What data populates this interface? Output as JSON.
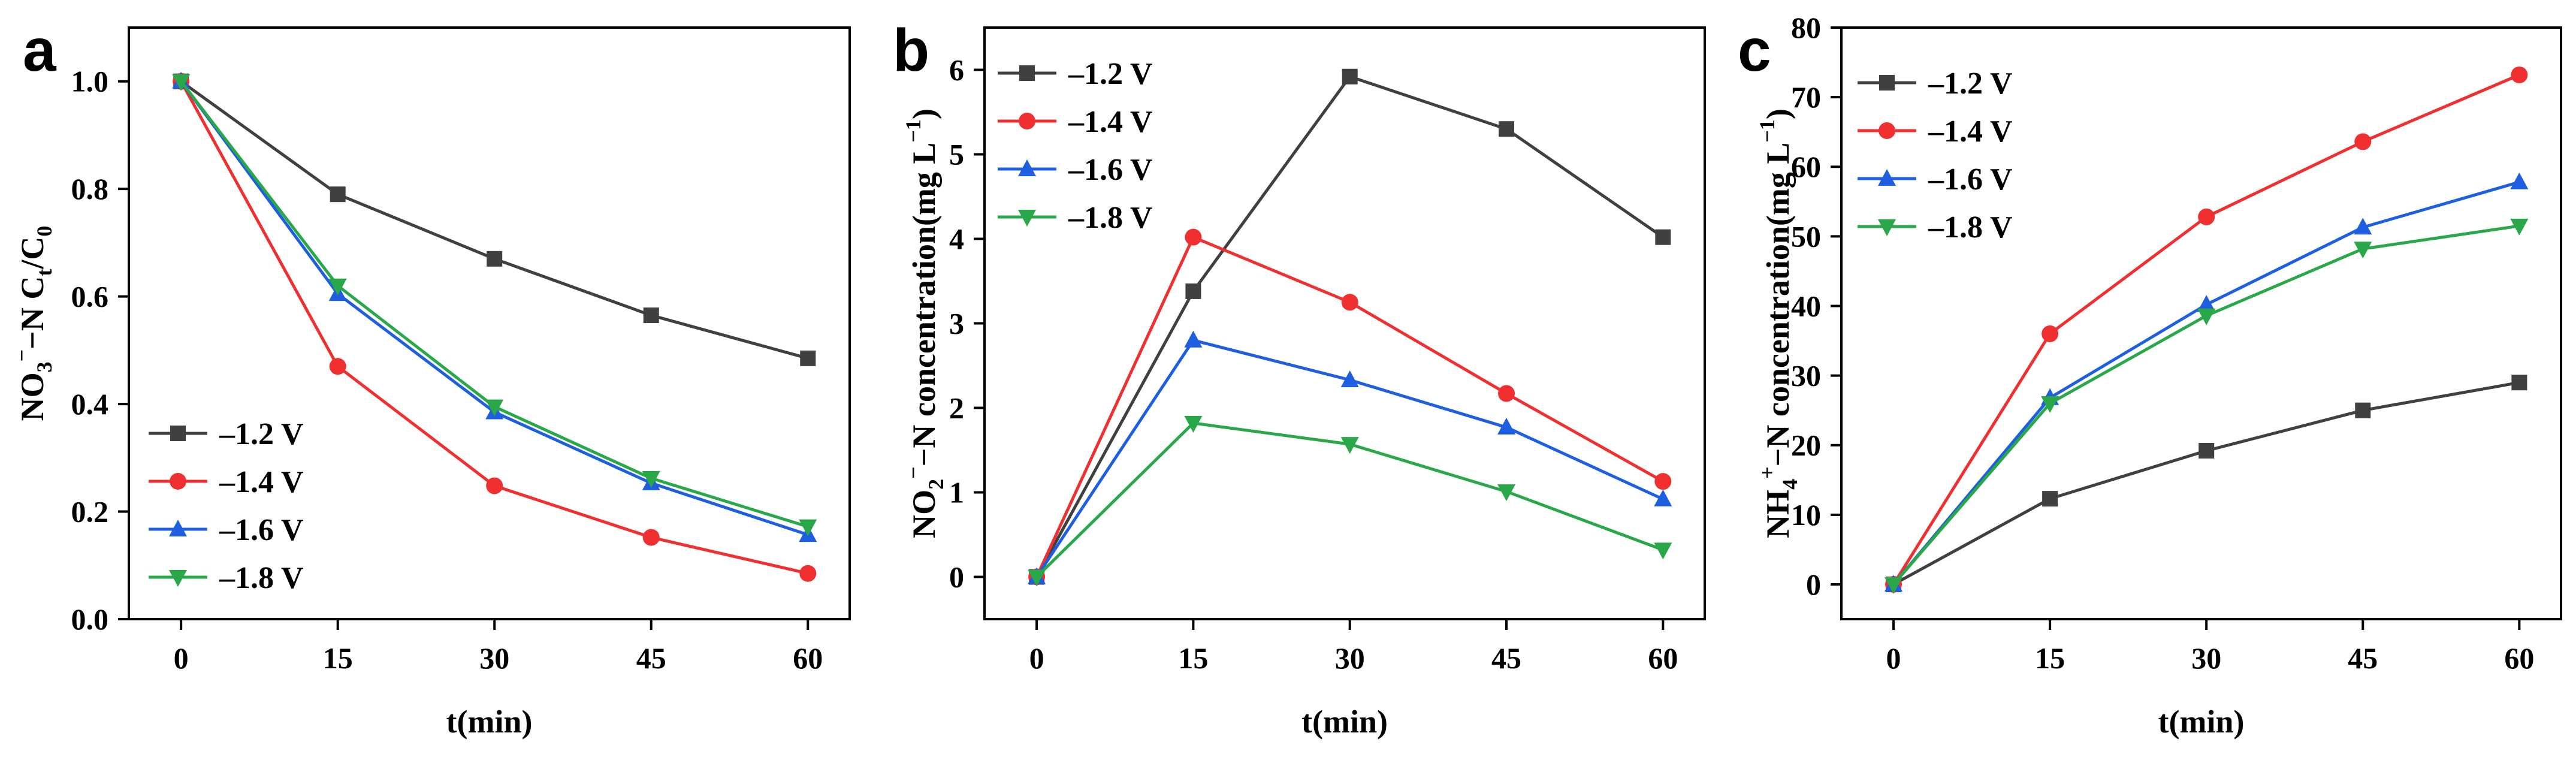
{
  "chart_data": [
    {
      "type": "line",
      "panel_label": "a",
      "x": [
        0,
        15,
        30,
        45,
        60
      ],
      "xlabel": "t(min)",
      "ylabel": {
        "base": "NO",
        "sub1": "3",
        "sup": "−",
        "mid": "−N C",
        "sub2": "t",
        "sep": "/C",
        "sub3": "0"
      },
      "xlim": [
        -5,
        64
      ],
      "ylim": [
        0,
        1.1
      ],
      "xticks": [
        "0",
        "15",
        "30",
        "45",
        "60"
      ],
      "yticks": [
        "0.0",
        "0.2",
        "0.4",
        "0.6",
        "0.8",
        "1.0"
      ],
      "ytick_values": [
        0,
        0.2,
        0.4,
        0.6,
        0.8,
        1.0
      ],
      "legend_position": "bottom-left",
      "series": [
        {
          "name": "–1.2 V",
          "color": "#404040",
          "marker": "square",
          "values": [
            1.0,
            0.79,
            0.67,
            0.565,
            0.485
          ]
        },
        {
          "name": "–1.4 V",
          "color": "#f03030",
          "marker": "circle",
          "values": [
            1.0,
            0.47,
            0.248,
            0.152,
            0.085
          ]
        },
        {
          "name": "–1.6 V",
          "color": "#1e5ee0",
          "marker": "triangle-up",
          "values": [
            1.0,
            0.605,
            0.385,
            0.253,
            0.157
          ]
        },
        {
          "name": "–1.8 V",
          "color": "#28a848",
          "marker": "triangle-down",
          "values": [
            1.0,
            0.62,
            0.395,
            0.262,
            0.172
          ]
        }
      ]
    },
    {
      "type": "line",
      "panel_label": "b",
      "x": [
        0,
        15,
        30,
        45,
        60
      ],
      "xlabel": "t(min)",
      "ylabel": {
        "base": "NO",
        "sub1": "2",
        "sup": "−",
        "mid": "−N concentration(mg L",
        "sup2": "−1",
        "end": ")"
      },
      "xlim": [
        -5,
        64
      ],
      "ylim": [
        -0.5,
        6.5
      ],
      "xticks": [
        "0",
        "15",
        "30",
        "45",
        "60"
      ],
      "yticks": [
        "0",
        "1",
        "2",
        "3",
        "4",
        "5",
        "6"
      ],
      "ytick_values": [
        0,
        1,
        2,
        3,
        4,
        5,
        6
      ],
      "legend_position": "top-left",
      "series": [
        {
          "name": "–1.2 V",
          "color": "#404040",
          "marker": "square",
          "values": [
            0,
            3.38,
            5.92,
            5.3,
            4.02
          ]
        },
        {
          "name": "–1.4 V",
          "color": "#f03030",
          "marker": "circle",
          "values": [
            0,
            4.02,
            3.25,
            2.17,
            1.13
          ]
        },
        {
          "name": "–1.6 V",
          "color": "#1e5ee0",
          "marker": "triangle-up",
          "values": [
            0,
            2.8,
            2.33,
            1.77,
            0.92
          ]
        },
        {
          "name": "–1.8 V",
          "color": "#28a848",
          "marker": "triangle-down",
          "values": [
            0,
            1.82,
            1.57,
            1.01,
            0.32
          ]
        }
      ]
    },
    {
      "type": "line",
      "panel_label": "c",
      "x": [
        0,
        15,
        30,
        45,
        60
      ],
      "xlabel": "t(min)",
      "ylabel": {
        "base": "NH",
        "sub1": "4",
        "sup": "+",
        "mid": "−N concentration(mg L",
        "sup2": "−1",
        "end": ")"
      },
      "xlim": [
        -5,
        64
      ],
      "ylim": [
        -5,
        80
      ],
      "xticks": [
        "0",
        "15",
        "30",
        "45",
        "60"
      ],
      "yticks": [
        "0",
        "10",
        "20",
        "30",
        "40",
        "50",
        "60",
        "70",
        "80"
      ],
      "ytick_values": [
        0,
        10,
        20,
        30,
        40,
        50,
        60,
        70,
        80
      ],
      "legend_position": "top-left",
      "series": [
        {
          "name": "–1.2 V",
          "color": "#404040",
          "marker": "square",
          "values": [
            0,
            12.3,
            19.2,
            25.0,
            29.0
          ]
        },
        {
          "name": "–1.4 V",
          "color": "#f03030",
          "marker": "circle",
          "values": [
            0,
            36.0,
            52.8,
            63.6,
            73.2
          ]
        },
        {
          "name": "–1.6 V",
          "color": "#1e5ee0",
          "marker": "triangle-up",
          "values": [
            0,
            26.8,
            40.2,
            51.3,
            57.8
          ]
        },
        {
          "name": "–1.8 V",
          "color": "#28a848",
          "marker": "triangle-down",
          "values": [
            0,
            26.0,
            38.6,
            48.2,
            51.5
          ]
        }
      ]
    }
  ]
}
